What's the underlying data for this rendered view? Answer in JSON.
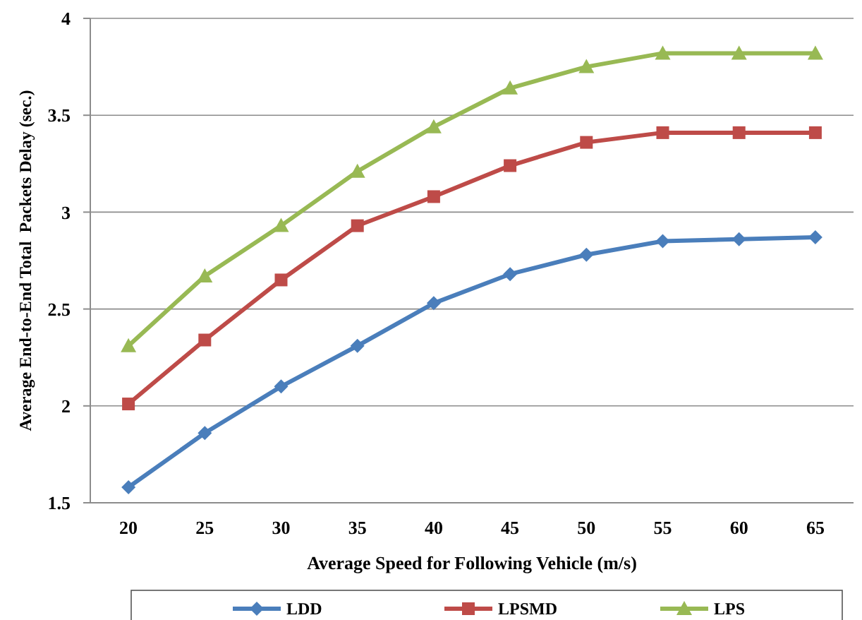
{
  "chart_data": {
    "type": "line",
    "xlabel": "Average Speed for Following Vehicle (m/s)",
    "ylabel": "Average End-to-End Total  Packets Delay (sec.)",
    "categories": [
      "20",
      "25",
      "30",
      "35",
      "40",
      "45",
      "50",
      "55",
      "60",
      "65"
    ],
    "ylim": [
      1.5,
      4
    ],
    "yticks": [
      {
        "value": 1.5,
        "label": "1.5"
      },
      2,
      {
        "value": 2.5,
        "label": "2.5"
      },
      3,
      {
        "value": 3.5,
        "label": "3.5"
      },
      4
    ],
    "grid": "y",
    "legend": "bottom",
    "series": [
      {
        "name": "LDD",
        "color": "#4a7ebb",
        "marker": "diamond",
        "values": [
          1.58,
          1.86,
          2.1,
          2.31,
          2.53,
          2.68,
          2.78,
          2.85,
          2.86,
          2.87
        ]
      },
      {
        "name": "LPSMD",
        "color": "#be4b48",
        "marker": "square",
        "values": [
          2.01,
          2.34,
          2.65,
          2.93,
          3.08,
          3.24,
          3.36,
          3.41,
          3.41,
          3.41
        ]
      },
      {
        "name": "LPS",
        "color": "#98b954",
        "marker": "triangle",
        "values": [
          2.31,
          2.67,
          2.93,
          3.21,
          3.44,
          3.64,
          3.75,
          3.82,
          3.82,
          3.82
        ]
      }
    ]
  }
}
